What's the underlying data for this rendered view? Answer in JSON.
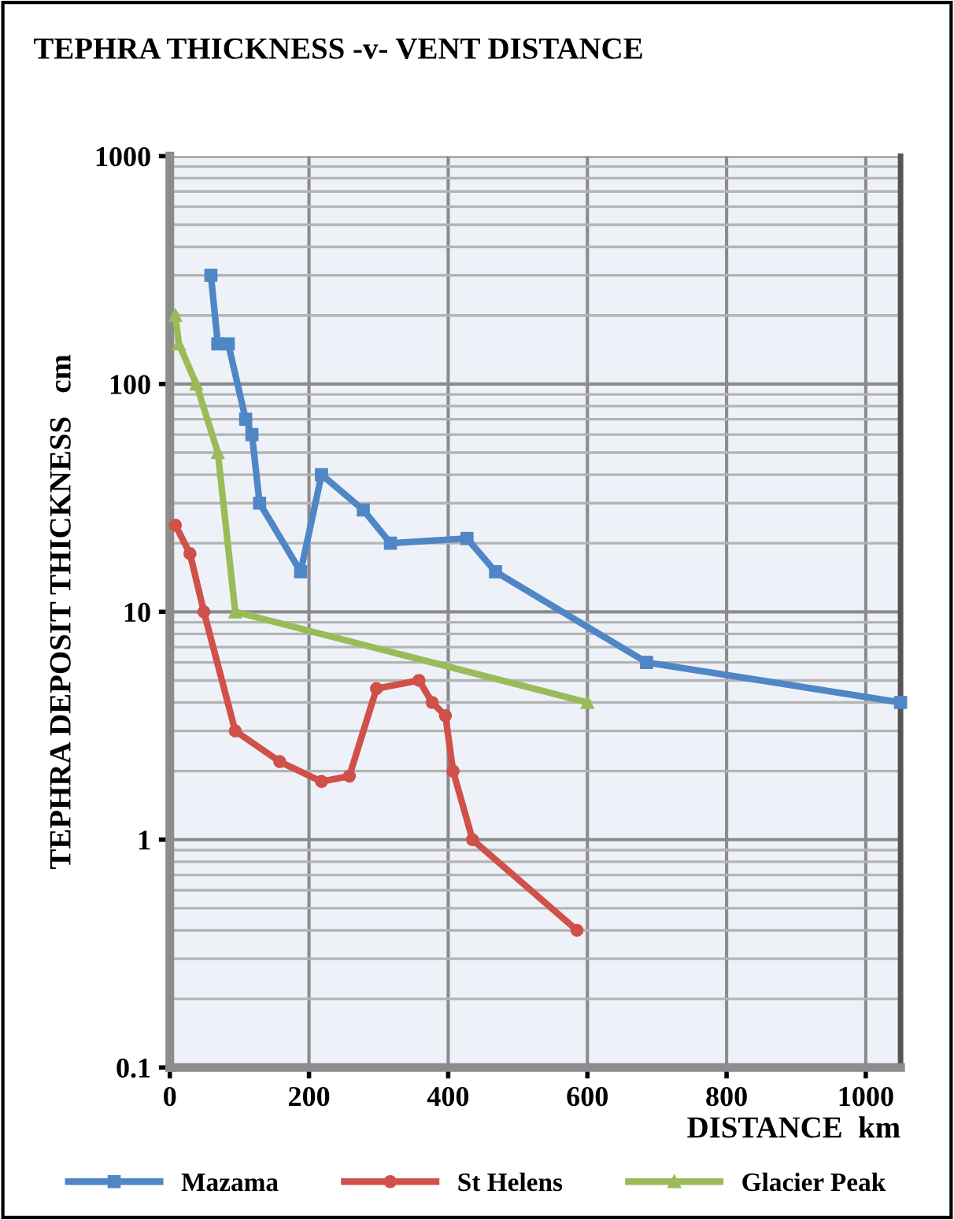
{
  "chart_data": {
    "type": "line",
    "title": "TEPHRA THICKNESS -v- VENT DISTANCE",
    "xlabel": "DISTANCE  km",
    "ylabel": "TEPHRA DEPOSIT THICKNESS   cm",
    "log": "y",
    "grid": true,
    "legend": "bottom",
    "line_style": "solid",
    "xlim": [
      0,
      1050
    ],
    "xticks": [
      0,
      200,
      400,
      600,
      800,
      1000
    ],
    "ylim": [
      0.1,
      1000
    ],
    "yticks": [
      0.1,
      1,
      10,
      100,
      1000
    ],
    "series": [
      {
        "name": "Mazama",
        "color": "#4f86c6",
        "marker": "square",
        "x": [
          59,
          69,
          84,
          109,
          118,
          129,
          188,
          218,
          278,
          317,
          427,
          468,
          685,
          1050
        ],
        "values": [
          300,
          150,
          150,
          70,
          60,
          30,
          15,
          40,
          28,
          20,
          21,
          15,
          6,
          4
        ]
      },
      {
        "name": "St Helens",
        "color": "#d0504a",
        "marker": "circle",
        "x": [
          8,
          29,
          49,
          94,
          158,
          218,
          258,
          297,
          358,
          377,
          396,
          407,
          435,
          585
        ],
        "values": [
          24,
          18,
          10,
          3,
          2.2,
          1.8,
          1.9,
          4.6,
          5,
          4,
          3.5,
          2,
          1,
          0.4
        ]
      },
      {
        "name": "Glacier Peak",
        "color": "#9bbb59",
        "marker": "triangle",
        "x": [
          8,
          13,
          38,
          69,
          94,
          600
        ],
        "values": [
          200,
          150,
          100,
          50,
          10,
          4
        ]
      }
    ]
  }
}
